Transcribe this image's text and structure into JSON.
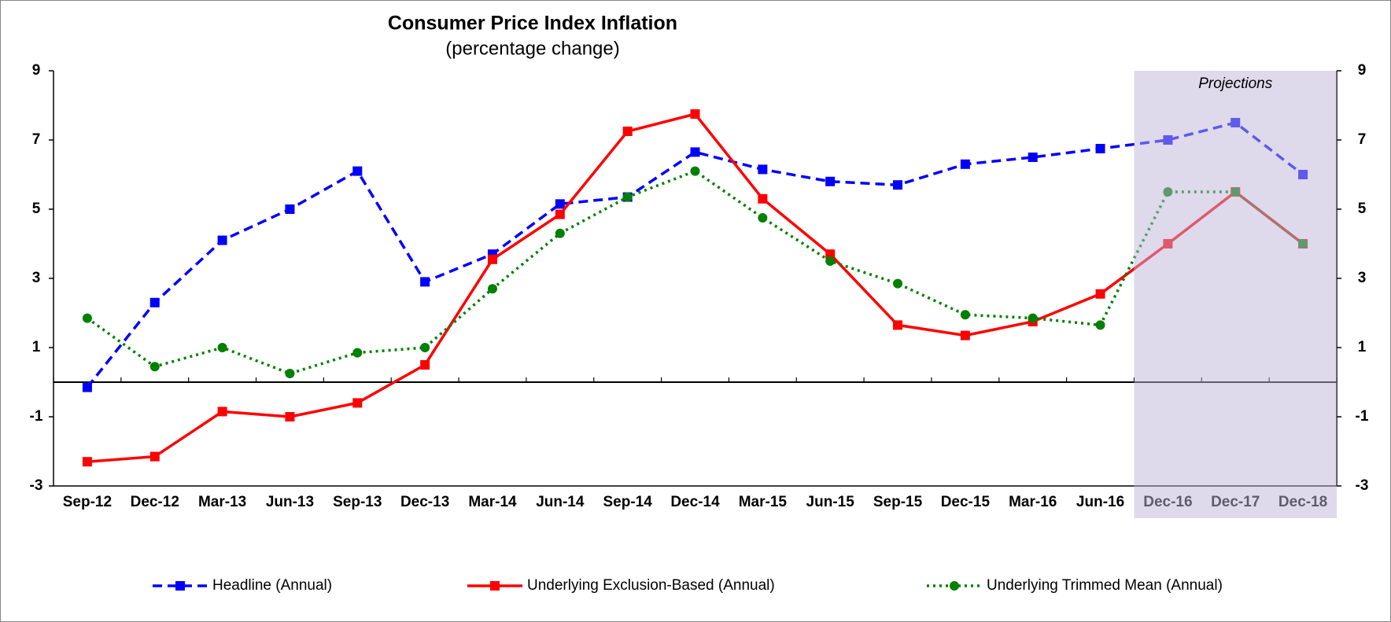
{
  "chart_data": {
    "type": "line",
    "title": "Consumer Price Index Inflation",
    "subtitle": "(percentage change)",
    "categories": [
      "Sep-12",
      "Dec-12",
      "Mar-13",
      "Jun-13",
      "Sep-13",
      "Dec-13",
      "Mar-14",
      "Jun-14",
      "Sep-14",
      "Dec-14",
      "Mar-15",
      "Jun-15",
      "Sep-15",
      "Dec-15",
      "Mar-16",
      "Jun-16",
      "Dec-16",
      "Dec-17",
      "Dec-18"
    ],
    "series": [
      {
        "name": "Headline (Annual)",
        "color": "#0000ff",
        "line_style": "dashed",
        "marker": "square",
        "values": [
          -0.15,
          2.3,
          4.1,
          5.0,
          6.1,
          2.9,
          3.7,
          5.15,
          5.35,
          6.65,
          6.15,
          5.8,
          5.7,
          6.3,
          6.5,
          6.75,
          7.0,
          7.5,
          6.0
        ]
      },
      {
        "name": "Underlying Exclusion-Based (Annual)",
        "color": "#ff0000",
        "line_style": "solid",
        "marker": "square",
        "values": [
          -2.3,
          -2.15,
          -0.85,
          -1.0,
          -0.6,
          0.5,
          3.55,
          4.85,
          7.25,
          7.75,
          5.3,
          3.7,
          1.65,
          1.35,
          1.75,
          2.55,
          4.0,
          5.5,
          4.0
        ]
      },
      {
        "name": "Underlying Trimmed Mean (Annual)",
        "color": "#008000",
        "line_style": "dotted",
        "marker": "circle",
        "values": [
          1.85,
          0.45,
          1.0,
          0.25,
          0.85,
          1.0,
          2.7,
          4.3,
          5.35,
          6.1,
          4.75,
          3.5,
          2.85,
          1.95,
          1.85,
          1.65,
          5.5,
          5.5,
          4.0
        ]
      }
    ],
    "ylim": [
      -3,
      9
    ],
    "yticks": [
      -3,
      -1,
      1,
      3,
      5,
      7,
      9
    ],
    "y2lim": [
      -3,
      9
    ],
    "y2ticks": [
      -3,
      -1,
      1,
      3,
      5,
      7,
      9
    ],
    "grid": false,
    "legend": "bottom",
    "shaded_region": {
      "label": "Projections",
      "from": "Dec-16",
      "to": "Dec-18",
      "color": "rgba(190,180,215,0.5)"
    }
  }
}
